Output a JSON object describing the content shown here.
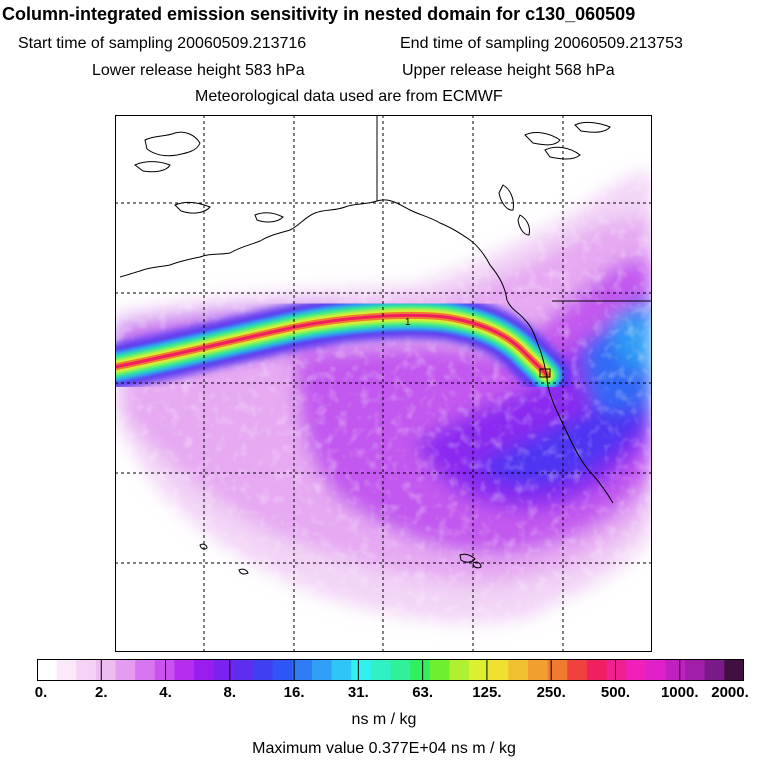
{
  "title": "Column-integrated emission sensitivity in nested domain for c130_060509",
  "start_label": "Start time of sampling 20060509.213716",
  "end_label": "End time of sampling 20060509.213753",
  "lower_label": "Lower release height  583 hPa",
  "upper_label": "Upper release height  568 hPa",
  "met_label": "Meteorological data used are from ECMWF",
  "release_marker": "1",
  "colorbar": {
    "ticks": [
      "0.",
      "2.",
      "4.",
      "8.",
      "16.",
      "31.",
      "63.",
      "125.",
      "250.",
      "500.",
      "1000.",
      "2000."
    ],
    "colors": [
      "#ffffff",
      "#fbe9fb",
      "#f5d2f6",
      "#eebdf0",
      "#e39cf0",
      "#d775f0",
      "#c953f0",
      "#b52ef0",
      "#9a1df0",
      "#7c22f0",
      "#5e2ef0",
      "#4040f2",
      "#2f55f5",
      "#2f7af5",
      "#2fa0f5",
      "#2fc6f5",
      "#30f0f0",
      "#30f0c4",
      "#30f09a",
      "#30f060",
      "#6ef030",
      "#b0f030",
      "#dcf030",
      "#f0e030",
      "#f0c030",
      "#f0a030",
      "#f07a30",
      "#f04040",
      "#f02060",
      "#f02090",
      "#f020b8",
      "#e020c8",
      "#c020c0",
      "#a01ea8",
      "#7a1a88",
      "#401040"
    ],
    "units": "ns m / kg"
  },
  "max_value_label": "Maximum value  0.377E+04 ns m / kg"
}
